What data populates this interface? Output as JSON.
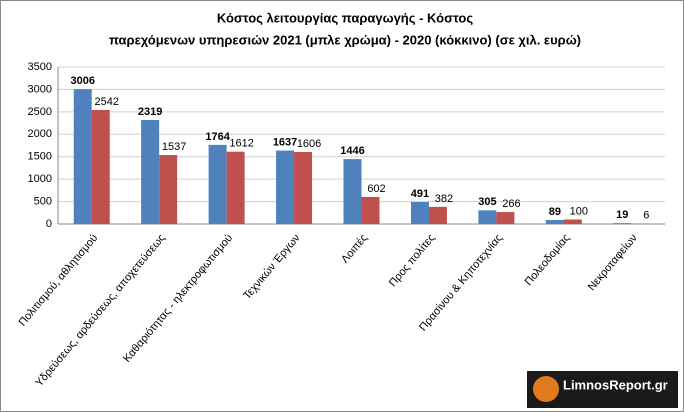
{
  "chart_data": {
    "type": "bar",
    "title": [
      "Κόστος λειτουργίας παραγωγής - Κόστος",
      "παρεχόμενων υπηρεσιών 2021 (μπλε χρώμα)  - 2020 (κόκκινο) (σε χιλ. ευρώ)"
    ],
    "categories": [
      "Πολιτισμού, αθλητισμού",
      "Υδρεύσεως, αρδεύσεως, αποχετεύσεως",
      "Καθαριότητας - ηλεκτροφωτισμού",
      "Τεχνικών Έργων",
      "Λοιπές",
      "Προς πολίτες",
      "Πρασίνου & Κηποτεχνίας",
      "Πολεοδομίας",
      "Νεκροταφείων"
    ],
    "series": [
      {
        "color": "#4f81bd",
        "values": [
          3006,
          2319,
          1764,
          1637,
          1446,
          491,
          305,
          89,
          19
        ]
      },
      {
        "color": "#c0504d",
        "values": [
          2542,
          1537,
          1612,
          1606,
          602,
          382,
          266,
          100,
          6
        ]
      }
    ],
    "ylim": [
      0,
      3500
    ],
    "yticks": [
      0,
      500,
      1000,
      1500,
      2000,
      2500,
      3000,
      3500
    ],
    "grid": true
  },
  "watermark": "LimnosReport.gr"
}
